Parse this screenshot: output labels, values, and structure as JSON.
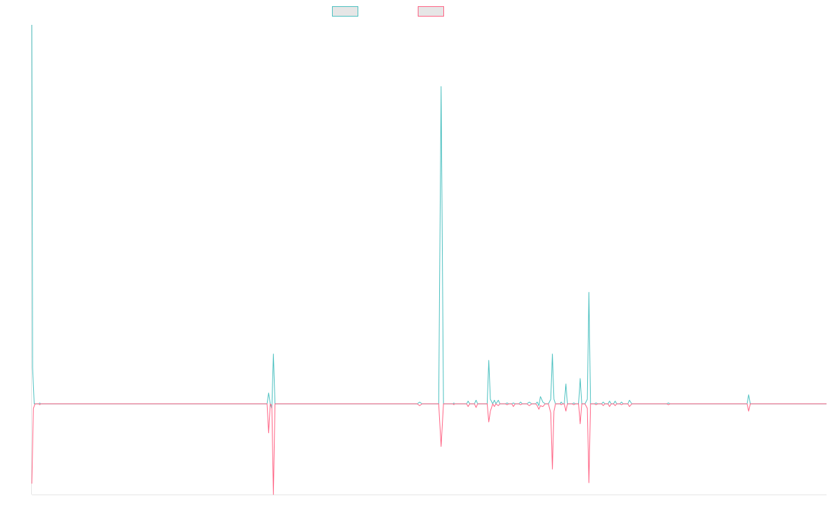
{
  "colors": {
    "series_up": "#4bc0c0",
    "series_down": "#ff6384",
    "legend_fill": "#e6e6e6",
    "axis": "#e5e5e5"
  },
  "chart_data": {
    "type": "line",
    "title": "",
    "xlabel": "",
    "ylabel": "",
    "x_tick_labels": [],
    "y_tick_labels": [],
    "grid": false,
    "legend_position": "top-center",
    "xlim": [
      0,
      1000
    ],
    "ylim": [
      -100,
      418
    ],
    "series": [
      {
        "name": "",
        "color": "#4bc0c0",
        "points": [
          [
            0,
            418
          ],
          [
            1,
            40
          ],
          [
            3,
            0
          ],
          [
            9,
            0
          ],
          [
            10,
            1
          ],
          [
            11,
            0
          ],
          [
            296,
            0
          ],
          [
            298,
            12
          ],
          [
            300,
            0
          ],
          [
            302,
            -5
          ],
          [
            304,
            55
          ],
          [
            306,
            0
          ],
          [
            485,
            0
          ],
          [
            488,
            2
          ],
          [
            491,
            0
          ],
          [
            512,
            0
          ],
          [
            515,
            350
          ],
          [
            518,
            0
          ],
          [
            530,
            0
          ],
          [
            531,
            1
          ],
          [
            532,
            0
          ],
          [
            547,
            0
          ],
          [
            549,
            3
          ],
          [
            551,
            0
          ],
          [
            557,
            0
          ],
          [
            559,
            4
          ],
          [
            561,
            0
          ],
          [
            573,
            0
          ],
          [
            575,
            48
          ],
          [
            577,
            5
          ],
          [
            580,
            0
          ],
          [
            582,
            4
          ],
          [
            584,
            0
          ],
          [
            587,
            4
          ],
          [
            589,
            0
          ],
          [
            596,
            0
          ],
          [
            598,
            1
          ],
          [
            600,
            0
          ],
          [
            604,
            0
          ],
          [
            606,
            1
          ],
          [
            608,
            0
          ],
          [
            613,
            0
          ],
          [
            615,
            2
          ],
          [
            617,
            0
          ],
          [
            623,
            0
          ],
          [
            626,
            2
          ],
          [
            629,
            0
          ],
          [
            634,
            0
          ],
          [
            636,
            2
          ],
          [
            638,
            -2
          ],
          [
            640,
            8
          ],
          [
            643,
            2
          ],
          [
            646,
            0
          ],
          [
            650,
            0
          ],
          [
            653,
            5
          ],
          [
            655,
            55
          ],
          [
            657,
            5
          ],
          [
            659,
            0
          ],
          [
            665,
            0
          ],
          [
            666,
            2
          ],
          [
            668,
            0
          ],
          [
            670,
            0
          ],
          [
            672,
            22
          ],
          [
            674,
            0
          ],
          [
            680,
            0
          ],
          [
            682,
            1
          ],
          [
            684,
            0
          ],
          [
            688,
            0
          ],
          [
            690,
            28
          ],
          [
            692,
            0
          ],
          [
            696,
            0
          ],
          [
            699,
            5
          ],
          [
            701,
            123
          ],
          [
            703,
            0
          ],
          [
            708,
            0
          ],
          [
            710,
            1
          ],
          [
            712,
            0
          ],
          [
            717,
            0
          ],
          [
            719,
            2
          ],
          [
            721,
            0
          ],
          [
            725,
            0
          ],
          [
            727,
            3
          ],
          [
            729,
            0
          ],
          [
            732,
            0
          ],
          [
            734,
            3
          ],
          [
            736,
            0
          ],
          [
            740,
            0
          ],
          [
            742,
            2
          ],
          [
            744,
            0
          ],
          [
            750,
            0
          ],
          [
            752,
            4
          ],
          [
            755,
            0
          ],
          [
            799,
            0
          ],
          [
            801,
            1
          ],
          [
            803,
            0
          ],
          [
            900,
            0
          ],
          [
            902,
            10
          ],
          [
            904,
            0
          ],
          [
            1000,
            0
          ]
        ]
      },
      {
        "name": "",
        "color": "#ff6384",
        "points": [
          [
            0,
            -88
          ],
          [
            2,
            -5
          ],
          [
            4,
            0
          ],
          [
            9,
            0
          ],
          [
            10,
            -1
          ],
          [
            11,
            0
          ],
          [
            296,
            0
          ],
          [
            298,
            -32
          ],
          [
            300,
            0
          ],
          [
            302,
            -2
          ],
          [
            304,
            -100
          ],
          [
            306,
            0
          ],
          [
            485,
            0
          ],
          [
            488,
            -2
          ],
          [
            491,
            0
          ],
          [
            512,
            0
          ],
          [
            515,
            -47
          ],
          [
            518,
            0
          ],
          [
            530,
            0
          ],
          [
            531,
            -1
          ],
          [
            532,
            0
          ],
          [
            547,
            0
          ],
          [
            549,
            -3
          ],
          [
            551,
            0
          ],
          [
            557,
            0
          ],
          [
            559,
            -4
          ],
          [
            561,
            0
          ],
          [
            573,
            0
          ],
          [
            575,
            -20
          ],
          [
            577,
            -8
          ],
          [
            580,
            0
          ],
          [
            582,
            -3
          ],
          [
            584,
            0
          ],
          [
            587,
            -2
          ],
          [
            589,
            0
          ],
          [
            596,
            0
          ],
          [
            598,
            -1
          ],
          [
            600,
            0
          ],
          [
            604,
            0
          ],
          [
            606,
            -3
          ],
          [
            608,
            0
          ],
          [
            613,
            0
          ],
          [
            615,
            -1
          ],
          [
            617,
            0
          ],
          [
            623,
            0
          ],
          [
            626,
            -2
          ],
          [
            629,
            0
          ],
          [
            634,
            0
          ],
          [
            636,
            -2
          ],
          [
            638,
            -6
          ],
          [
            640,
            -2
          ],
          [
            643,
            -3
          ],
          [
            646,
            0
          ],
          [
            650,
            0
          ],
          [
            653,
            -10
          ],
          [
            655,
            -72
          ],
          [
            657,
            -8
          ],
          [
            659,
            0
          ],
          [
            665,
            0
          ],
          [
            666,
            -1
          ],
          [
            668,
            0
          ],
          [
            670,
            0
          ],
          [
            672,
            -8
          ],
          [
            674,
            0
          ],
          [
            680,
            0
          ],
          [
            682,
            -1
          ],
          [
            684,
            0
          ],
          [
            688,
            0
          ],
          [
            690,
            -22
          ],
          [
            692,
            0
          ],
          [
            696,
            0
          ],
          [
            699,
            -5
          ],
          [
            701,
            -87
          ],
          [
            703,
            0
          ],
          [
            708,
            0
          ],
          [
            710,
            -1
          ],
          [
            712,
            0
          ],
          [
            717,
            0
          ],
          [
            719,
            -2
          ],
          [
            721,
            0
          ],
          [
            725,
            0
          ],
          [
            727,
            -3
          ],
          [
            729,
            0
          ],
          [
            732,
            0
          ],
          [
            734,
            -2
          ],
          [
            736,
            0
          ],
          [
            740,
            0
          ],
          [
            742,
            -1
          ],
          [
            744,
            0
          ],
          [
            750,
            0
          ],
          [
            752,
            -3
          ],
          [
            755,
            0
          ],
          [
            799,
            0
          ],
          [
            801,
            -1
          ],
          [
            803,
            0
          ],
          [
            900,
            0
          ],
          [
            902,
            -8
          ],
          [
            904,
            0
          ],
          [
            1000,
            0
          ]
        ]
      }
    ]
  }
}
